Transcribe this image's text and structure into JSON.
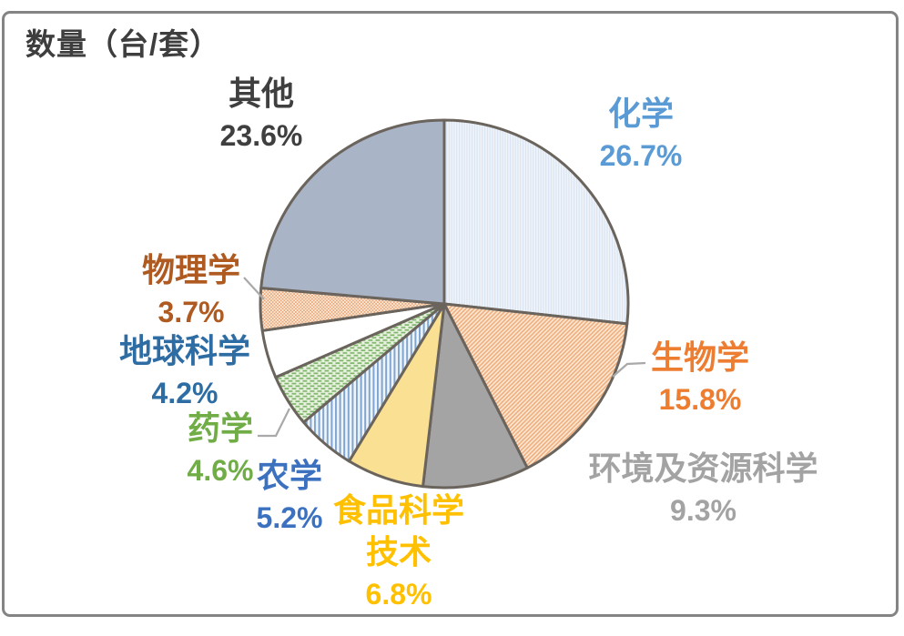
{
  "title": "数量（台/套）",
  "frame_color": "#848484",
  "chart_data": {
    "type": "pie",
    "title": "数量（台/套）",
    "unit_label": "台/套",
    "direction": "clockwise",
    "start_angle_deg": 0,
    "outline_color": "#6A645D",
    "leader_line_color": "#A9A9A9",
    "slices": [
      {
        "label": "化学",
        "value": 26.7,
        "pct_label": "26.7%",
        "label_color": "#5B9BD5",
        "fill_style": "vlines",
        "fill_bg": "#F0F4FA",
        "fill_fg": "#D9E3F1"
      },
      {
        "label": "生物学",
        "value": 15.8,
        "pct_label": "15.8%",
        "label_color": "#ED7D31",
        "fill_style": "diag",
        "fill_bg": "#FCEAD6",
        "fill_fg": "#EFAE7E"
      },
      {
        "label": "环境及资源科学",
        "value": 9.3,
        "pct_label": "9.3%",
        "label_color": "#A3A3A3",
        "fill_style": "solid",
        "fill_bg": "#A4A4A4"
      },
      {
        "label": "食品科学技术",
        "label_lines": [
          "食品科学",
          "技术"
        ],
        "value": 6.8,
        "pct_label": "6.8%",
        "label_color": "#FFC000",
        "fill_style": "solid",
        "fill_bg": "#F9E092"
      },
      {
        "label": "农学",
        "value": 5.2,
        "pct_label": "5.2%",
        "label_color": "#3C71C0",
        "fill_style": "vlines2",
        "fill_bg": "#F0F5FB",
        "fill_fg": "#7FA5CF"
      },
      {
        "label": "药学",
        "value": 4.6,
        "pct_label": "4.6%",
        "label_color": "#70AD47",
        "fill_style": "brick",
        "fill_bg": "#E9F1E0",
        "fill_fg": "#7CB468"
      },
      {
        "label": "地球科学",
        "value": 4.2,
        "pct_label": "4.2%",
        "label_color": "#2E6DA4",
        "fill_style": "solid",
        "fill_bg": "#FFFFFF"
      },
      {
        "label": "物理学",
        "value": 3.7,
        "pct_label": "3.7%",
        "label_color": "#AE5A21",
        "fill_style": "checker",
        "fill_bg": "#FBEDDE",
        "fill_fg": "#EBA97B"
      },
      {
        "label": "其他",
        "value": 23.6,
        "pct_label": "23.6%",
        "label_color": "#3F3F3F",
        "fill_style": "solid",
        "fill_bg": "#A9B4C7"
      }
    ]
  }
}
